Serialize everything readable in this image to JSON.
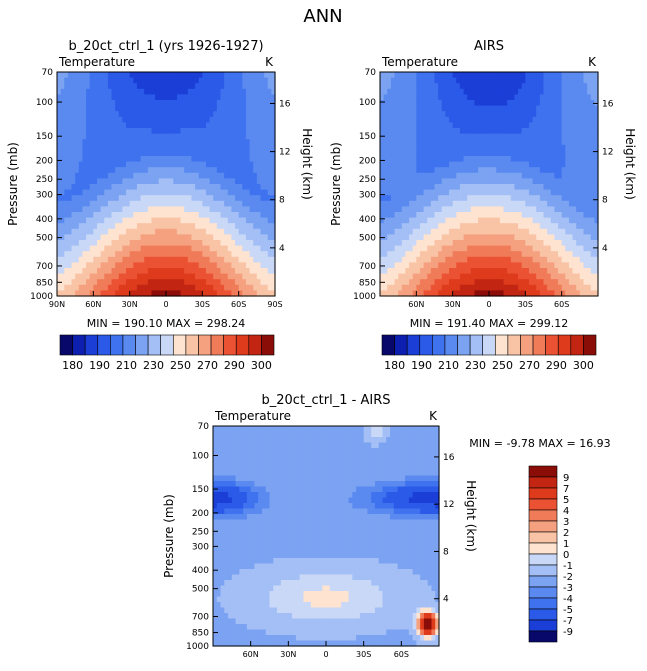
{
  "page_title": "ANN",
  "axis_common": {
    "ylabel_left": "Pressure  (mb)",
    "ylabel_right": "Height  (km)",
    "pressure_ticks": [
      "70",
      "100",
      "150",
      "200",
      "250",
      "300",
      "400",
      "500",
      "700",
      "850",
      "1000"
    ],
    "height_ticks": [
      "16",
      "12",
      "8",
      "4"
    ]
  },
  "chart_data": [
    {
      "type": "heatmap",
      "title": "b_20ct_ctrl_1 (yrs 1926-1927)",
      "variable_label": "Temperature",
      "units_label": "K",
      "x_ticks": [
        "90N",
        "60N",
        "30N",
        "0",
        "30S",
        "60S",
        "90S"
      ],
      "min_max_text": "MIN = 190.10   MAX = 298.24",
      "min": 190.1,
      "max": 298.24
    },
    {
      "type": "heatmap",
      "title": "AIRS",
      "variable_label": "Temperature",
      "units_label": "K",
      "x_ticks": [
        "60N",
        "30N",
        "0",
        "30S",
        "60S"
      ],
      "min_max_text": "MIN = 191.40   MAX = 299.12",
      "min": 191.4,
      "max": 299.12
    },
    {
      "type": "heatmap",
      "title": "b_20ct_ctrl_1 - AIRS",
      "variable_label": "Temperature",
      "units_label": "K",
      "x_ticks": [
        "60N",
        "30N",
        "0",
        "30S",
        "60S"
      ],
      "min_max_text": "MIN =   -9.78   MAX =   16.93",
      "min": -9.78,
      "max": 16.93
    }
  ],
  "colorbar_abs": {
    "labels": [
      "180",
      "190",
      "210",
      "230",
      "250",
      "270",
      "290",
      "300"
    ],
    "colors": [
      "#08086a",
      "#0d1fae",
      "#1a3ed6",
      "#2b5ae8",
      "#3f72ee",
      "#5a8af0",
      "#7ba3f2",
      "#a3bff5",
      "#c9d8f7",
      "#fde3d0",
      "#f9c4a6",
      "#f5a180",
      "#f07b59",
      "#eb5233",
      "#de3a1c",
      "#c22612",
      "#8b0d08"
    ]
  },
  "colorbar_diff": {
    "labels": [
      "9",
      "7",
      "5",
      "4",
      "3",
      "2",
      "1",
      "0",
      "-1",
      "-2",
      "-3",
      "-4",
      "-5",
      "-7",
      "-9"
    ],
    "colors": [
      "#8b0d08",
      "#c22612",
      "#de3a1c",
      "#eb5233",
      "#f07b59",
      "#f5a180",
      "#f9c4a6",
      "#fde3d0",
      "#c9d8f7",
      "#a3bff5",
      "#7ba3f2",
      "#5a8af0",
      "#3f72ee",
      "#2b5ae8",
      "#1a3ed6",
      "#08086a"
    ]
  }
}
